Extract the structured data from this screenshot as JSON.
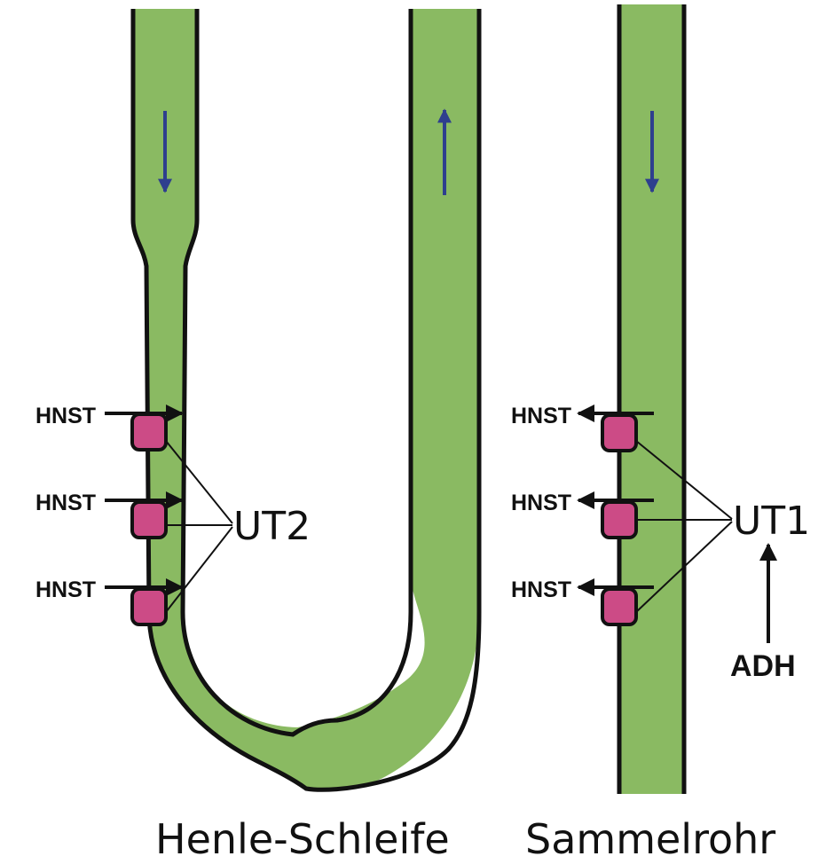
{
  "colors": {
    "tube_fill": "#8aba62",
    "tube_outline": "#111111",
    "transporter": "#cc4b86",
    "flow_arrow": "#2e3f8e"
  },
  "henle": {
    "transporter_label": "UT2",
    "hnst_labels": [
      "HNST",
      "HNST",
      "HNST"
    ],
    "caption": "Henle-Schleife"
  },
  "collecting_duct": {
    "transporter_label": "UT1",
    "hnst_labels": [
      "HNST",
      "HNST",
      "HNST"
    ],
    "hormone": "ADH",
    "caption": "Sammelrohr"
  }
}
